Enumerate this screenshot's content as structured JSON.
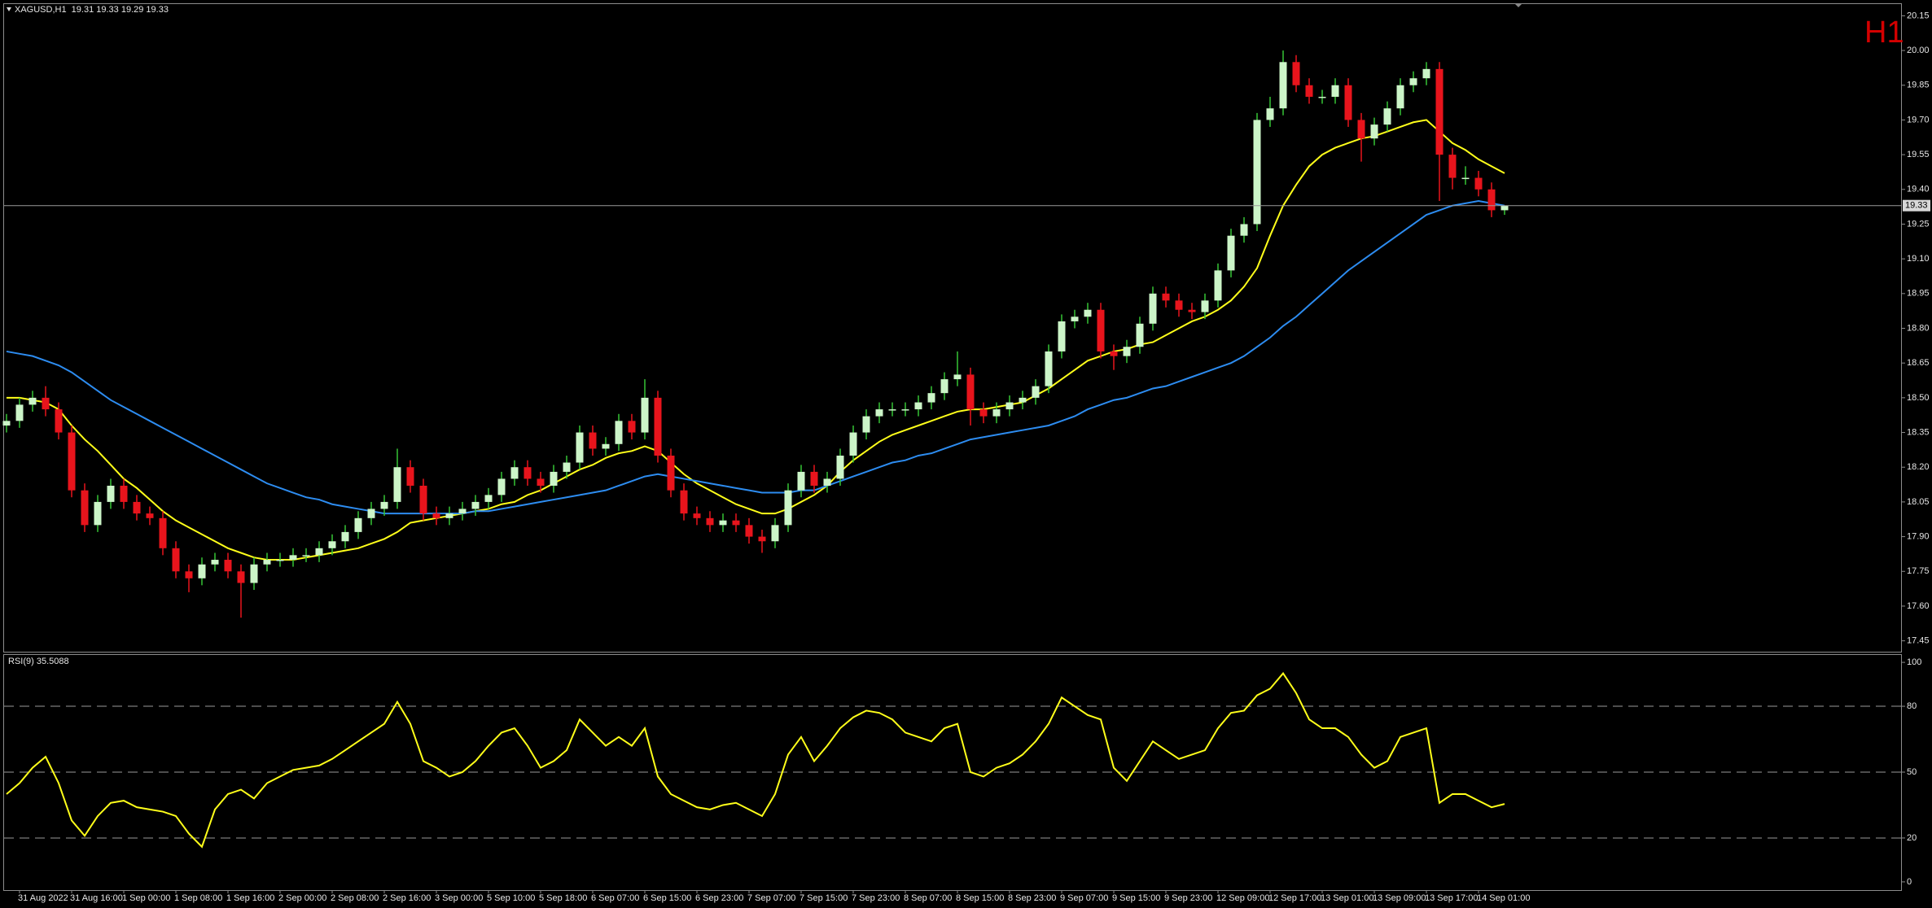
{
  "chart_data": [
    {
      "type": "candlestick",
      "title": "XAGUSD,H1  19.31 19.33 19.29 19.33",
      "timeframe": "H1",
      "categories": [
        null,
        "31 Aug 2022",
        null,
        null,
        null,
        "31 Aug 16:00",
        null,
        null,
        null,
        "1 Sep 00:00",
        null,
        null,
        null,
        "1 Sep 08:00",
        null,
        null,
        null,
        "1 Sep 16:00",
        null,
        null,
        null,
        "2 Sep 00:00",
        null,
        null,
        null,
        "2 Sep 08:00",
        null,
        null,
        null,
        "2 Sep 16:00",
        null,
        null,
        null,
        "3 Sep 00:00",
        null,
        null,
        null,
        "5 Sep 10:00",
        null,
        null,
        null,
        "5 Sep 18:00",
        null,
        null,
        null,
        "6 Sep 07:00",
        null,
        null,
        null,
        "6 Sep 15:00",
        null,
        null,
        null,
        "6 Sep 23:00",
        null,
        null,
        null,
        "7 Sep 07:00",
        null,
        null,
        null,
        "7 Sep 15:00",
        null,
        null,
        null,
        "7 Sep 23:00",
        null,
        null,
        null,
        "8 Sep 07:00",
        null,
        null,
        null,
        "8 Sep 15:00",
        null,
        null,
        null,
        "8 Sep 23:00",
        null,
        null,
        null,
        "9 Sep 07:00",
        null,
        null,
        null,
        "9 Sep 15:00",
        null,
        null,
        null,
        "9 Sep 23:00",
        null,
        null,
        null,
        "12 Sep 09:00",
        null,
        null,
        null,
        "12 Sep 17:00",
        null,
        null,
        null,
        "13 Sep 01:00",
        null,
        null,
        null,
        "13 Sep 09:00",
        null,
        null,
        null,
        "13 Sep 17:00",
        null,
        null,
        null,
        "14 Sep 01:00",
        null,
        null
      ],
      "open": [
        18.38,
        18.4,
        18.47,
        18.5,
        18.45,
        18.35,
        18.1,
        17.95,
        18.05,
        18.12,
        18.05,
        18.0,
        17.98,
        17.85,
        17.75,
        17.72,
        17.78,
        17.8,
        17.75,
        17.7,
        17.78,
        17.8,
        17.8,
        17.82,
        17.82,
        17.85,
        17.88,
        17.92,
        17.98,
        18.02,
        18.05,
        18.2,
        18.12,
        18.0,
        17.98,
        18.0,
        18.02,
        18.05,
        18.08,
        18.15,
        18.2,
        18.15,
        18.12,
        18.18,
        18.22,
        18.35,
        18.28,
        18.3,
        18.4,
        18.35,
        18.5,
        18.25,
        18.1,
        18.0,
        17.98,
        17.95,
        17.97,
        17.95,
        17.9,
        17.88,
        17.95,
        18.1,
        18.18,
        18.12,
        18.15,
        18.25,
        18.35,
        18.42,
        18.45,
        18.45,
        18.45,
        18.48,
        18.52,
        18.58,
        18.6,
        18.45,
        18.42,
        18.45,
        18.48,
        18.5,
        18.55,
        18.7,
        18.83,
        18.85,
        18.88,
        18.7,
        18.68,
        18.72,
        18.82,
        18.95,
        18.92,
        18.88,
        18.87,
        18.92,
        19.05,
        19.2,
        19.25,
        19.7,
        19.75,
        19.95,
        19.85,
        19.8,
        19.8,
        19.85,
        19.7,
        19.62,
        19.68,
        19.75,
        19.85,
        19.88,
        19.92,
        19.55,
        19.45,
        19.45,
        19.4,
        19.31
      ],
      "high": [
        18.43,
        18.5,
        18.53,
        18.55,
        18.48,
        18.38,
        18.13,
        18.08,
        18.15,
        18.15,
        18.08,
        18.03,
        18.01,
        17.88,
        17.78,
        17.81,
        17.83,
        17.83,
        17.78,
        17.81,
        17.83,
        17.83,
        17.85,
        17.85,
        17.88,
        17.91,
        17.95,
        18.01,
        18.05,
        18.08,
        18.28,
        18.23,
        18.15,
        18.03,
        18.03,
        18.05,
        18.08,
        18.11,
        18.18,
        18.23,
        18.23,
        18.18,
        18.21,
        18.25,
        18.38,
        18.38,
        18.33,
        18.43,
        18.43,
        18.58,
        18.53,
        18.28,
        18.13,
        18.03,
        18.01,
        18.0,
        18.0,
        17.98,
        17.93,
        17.98,
        18.13,
        18.21,
        18.21,
        18.18,
        18.28,
        18.38,
        18.45,
        18.48,
        18.48,
        18.48,
        18.51,
        18.55,
        18.61,
        18.7,
        18.63,
        18.48,
        18.48,
        18.51,
        18.53,
        18.58,
        18.73,
        18.86,
        18.88,
        18.91,
        18.91,
        18.73,
        18.75,
        18.85,
        18.98,
        18.98,
        18.95,
        18.91,
        18.95,
        19.08,
        19.23,
        19.28,
        19.73,
        19.8,
        20.0,
        19.98,
        19.88,
        19.83,
        19.88,
        19.88,
        19.73,
        19.71,
        19.78,
        19.88,
        19.91,
        19.95,
        19.95,
        19.58,
        19.5,
        19.48,
        19.43,
        19.33
      ],
      "low": [
        18.35,
        18.37,
        18.44,
        18.42,
        18.32,
        18.07,
        17.92,
        17.92,
        18.02,
        18.02,
        17.97,
        17.95,
        17.82,
        17.72,
        17.66,
        17.69,
        17.75,
        17.72,
        17.55,
        17.67,
        17.75,
        17.77,
        17.77,
        17.79,
        17.79,
        17.82,
        17.85,
        17.89,
        17.95,
        17.99,
        18.02,
        18.09,
        17.97,
        17.95,
        17.95,
        17.97,
        17.99,
        18.02,
        18.05,
        18.12,
        18.12,
        18.09,
        18.09,
        18.15,
        18.19,
        18.25,
        18.25,
        18.27,
        18.32,
        18.32,
        18.22,
        18.07,
        17.97,
        17.95,
        17.92,
        17.92,
        17.92,
        17.87,
        17.83,
        17.85,
        17.92,
        18.07,
        18.09,
        18.09,
        18.12,
        18.22,
        18.32,
        18.39,
        18.42,
        18.42,
        18.42,
        18.45,
        18.49,
        18.55,
        18.38,
        18.39,
        18.39,
        18.42,
        18.45,
        18.47,
        18.52,
        18.67,
        18.8,
        18.82,
        18.67,
        18.62,
        18.65,
        18.69,
        18.79,
        18.89,
        18.85,
        18.84,
        18.84,
        18.89,
        19.02,
        19.17,
        19.22,
        19.67,
        19.72,
        19.82,
        19.77,
        19.77,
        19.77,
        19.67,
        19.52,
        19.59,
        19.65,
        19.72,
        19.82,
        19.85,
        19.35,
        19.4,
        19.42,
        19.37,
        19.28,
        19.29
      ],
      "close": [
        18.4,
        18.47,
        18.5,
        18.45,
        18.35,
        18.1,
        17.95,
        18.05,
        18.12,
        18.05,
        18.0,
        17.98,
        17.85,
        17.75,
        17.72,
        17.78,
        17.8,
        17.75,
        17.7,
        17.78,
        17.8,
        17.8,
        17.82,
        17.82,
        17.85,
        17.88,
        17.92,
        17.98,
        18.02,
        18.05,
        18.2,
        18.12,
        18.0,
        17.98,
        18.0,
        18.02,
        18.05,
        18.08,
        18.15,
        18.2,
        18.15,
        18.12,
        18.18,
        18.22,
        18.35,
        18.28,
        18.3,
        18.4,
        18.35,
        18.5,
        18.25,
        18.1,
        18.0,
        17.98,
        17.95,
        17.97,
        17.95,
        17.9,
        17.88,
        17.95,
        18.1,
        18.18,
        18.12,
        18.15,
        18.25,
        18.35,
        18.42,
        18.45,
        18.45,
        18.45,
        18.48,
        18.52,
        18.58,
        18.6,
        18.45,
        18.42,
        18.45,
        18.48,
        18.5,
        18.55,
        18.7,
        18.83,
        18.85,
        18.88,
        18.7,
        18.68,
        18.72,
        18.82,
        18.95,
        18.92,
        18.88,
        18.87,
        18.92,
        19.05,
        19.2,
        19.25,
        19.7,
        19.75,
        19.95,
        19.85,
        19.8,
        19.8,
        19.85,
        19.7,
        19.62,
        19.68,
        19.75,
        19.85,
        19.88,
        19.92,
        19.55,
        19.45,
        19.45,
        19.4,
        19.31,
        19.33
      ],
      "up_color": "#ccf5c8",
      "up_wick_color": "#35c435",
      "down_color": "#e8141c",
      "series": [
        {
          "color": "#ffff1a",
          "values": [
            18.5,
            18.5,
            18.49,
            18.48,
            18.45,
            18.38,
            18.32,
            18.27,
            18.21,
            18.15,
            18.11,
            18.06,
            18.01,
            17.97,
            17.94,
            17.91,
            17.88,
            17.85,
            17.83,
            17.81,
            17.8,
            17.8,
            17.8,
            17.81,
            17.82,
            17.83,
            17.84,
            17.85,
            17.87,
            17.89,
            17.92,
            17.96,
            17.97,
            17.98,
            17.99,
            18.0,
            18.01,
            18.02,
            18.04,
            18.05,
            18.08,
            18.1,
            18.13,
            18.16,
            18.19,
            18.21,
            18.24,
            18.26,
            18.27,
            18.29,
            18.27,
            18.22,
            18.17,
            18.13,
            18.1,
            18.07,
            18.04,
            18.02,
            18.0,
            18.0,
            18.02,
            18.05,
            18.08,
            18.12,
            18.18,
            18.23,
            18.27,
            18.31,
            18.34,
            18.36,
            18.38,
            18.4,
            18.42,
            18.44,
            18.45,
            18.45,
            18.46,
            18.47,
            18.48,
            18.51,
            18.54,
            18.58,
            18.62,
            18.66,
            18.68,
            18.7,
            18.71,
            18.73,
            18.74,
            18.77,
            18.8,
            18.83,
            18.85,
            18.88,
            18.92,
            18.98,
            19.06,
            19.2,
            19.33,
            19.42,
            19.5,
            19.55,
            19.58,
            19.6,
            19.62,
            19.63,
            19.65,
            19.67,
            19.69,
            19.7,
            19.65,
            19.6,
            19.57,
            19.53,
            19.5,
            19.47
          ]
        },
        {
          "color": "#2d8cf0",
          "values": [
            18.7,
            18.69,
            18.68,
            18.66,
            18.64,
            18.61,
            18.57,
            18.53,
            18.49,
            18.46,
            18.43,
            18.4,
            18.37,
            18.34,
            18.31,
            18.28,
            18.25,
            18.22,
            18.19,
            18.16,
            18.13,
            18.11,
            18.09,
            18.07,
            18.06,
            18.04,
            18.03,
            18.02,
            18.01,
            18.0,
            18.0,
            18.0,
            18.0,
            18.0,
            18.0,
            18.0,
            18.01,
            18.01,
            18.02,
            18.03,
            18.04,
            18.05,
            18.06,
            18.07,
            18.08,
            18.09,
            18.1,
            18.12,
            18.14,
            18.16,
            18.17,
            18.16,
            18.15,
            18.14,
            18.13,
            18.12,
            18.11,
            18.1,
            18.09,
            18.09,
            18.09,
            18.1,
            18.1,
            18.12,
            18.14,
            18.16,
            18.18,
            18.2,
            18.22,
            18.23,
            18.25,
            18.26,
            18.28,
            18.3,
            18.32,
            18.33,
            18.34,
            18.35,
            18.36,
            18.37,
            18.38,
            18.4,
            18.42,
            18.45,
            18.47,
            18.49,
            18.5,
            18.52,
            18.54,
            18.55,
            18.57,
            18.59,
            18.61,
            18.63,
            18.65,
            18.68,
            18.72,
            18.76,
            18.81,
            18.85,
            18.9,
            18.95,
            19.0,
            19.05,
            19.09,
            19.13,
            19.17,
            19.21,
            19.25,
            19.29,
            19.31,
            19.33,
            19.34,
            19.35,
            19.34,
            19.33
          ]
        }
      ],
      "last_price": 19.33,
      "last_price_color": "#9a9a9a",
      "ylim": [
        17.41,
        20.19
      ],
      "yticks": [
        17.45,
        {
          "value": 17.6,
          "label": "17.60"
        },
        17.75,
        {
          "value": 17.9,
          "label": "17.90"
        },
        18.05,
        {
          "value": 18.2,
          "label": "18.20"
        },
        18.35,
        {
          "value": 18.5,
          "label": "18.50"
        },
        18.65,
        {
          "value": 18.8,
          "label": "18.80"
        },
        18.95,
        {
          "value": 19.1,
          "label": "19.10"
        },
        19.25,
        {
          "value": 19.4,
          "label": "19.40"
        },
        19.55,
        {
          "value": 19.7,
          "label": "19.70"
        },
        19.85,
        {
          "value": 20.0,
          "label": "20.00"
        },
        20.15
      ],
      "grid": false
    },
    {
      "type": "line",
      "title": "RSI(9) 35.5088",
      "color": "#ffff1a",
      "values": [
        40,
        45,
        52,
        57,
        45,
        28,
        21,
        30,
        36,
        37,
        34,
        33,
        32,
        30,
        22,
        16,
        33,
        40,
        42,
        38,
        45,
        48,
        51,
        52,
        53,
        56,
        60,
        64,
        68,
        72,
        82,
        72,
        55,
        52,
        48,
        50,
        55,
        62,
        68,
        70,
        62,
        52,
        55,
        60,
        74,
        68,
        62,
        66,
        62,
        70,
        48,
        40,
        37,
        34,
        33,
        35,
        36,
        33,
        30,
        40,
        58,
        66,
        55,
        62,
        70,
        75,
        78,
        77,
        74,
        68,
        66,
        64,
        70,
        72,
        50,
        48,
        52,
        54,
        58,
        64,
        72,
        84,
        80,
        76,
        74,
        52,
        46,
        55,
        64,
        60,
        56,
        58,
        60,
        70,
        77,
        78,
        85,
        88,
        95,
        86,
        74,
        70,
        70,
        66,
        58,
        52,
        55,
        66,
        68,
        70,
        36,
        40,
        40,
        37,
        34,
        35.5088
      ],
      "ylim": [
        -3,
        103
      ],
      "yticks": [
        0,
        20,
        50,
        80,
        100
      ],
      "levels": [
        20,
        50,
        80
      ],
      "level_color": "#9a9a9a"
    }
  ]
}
